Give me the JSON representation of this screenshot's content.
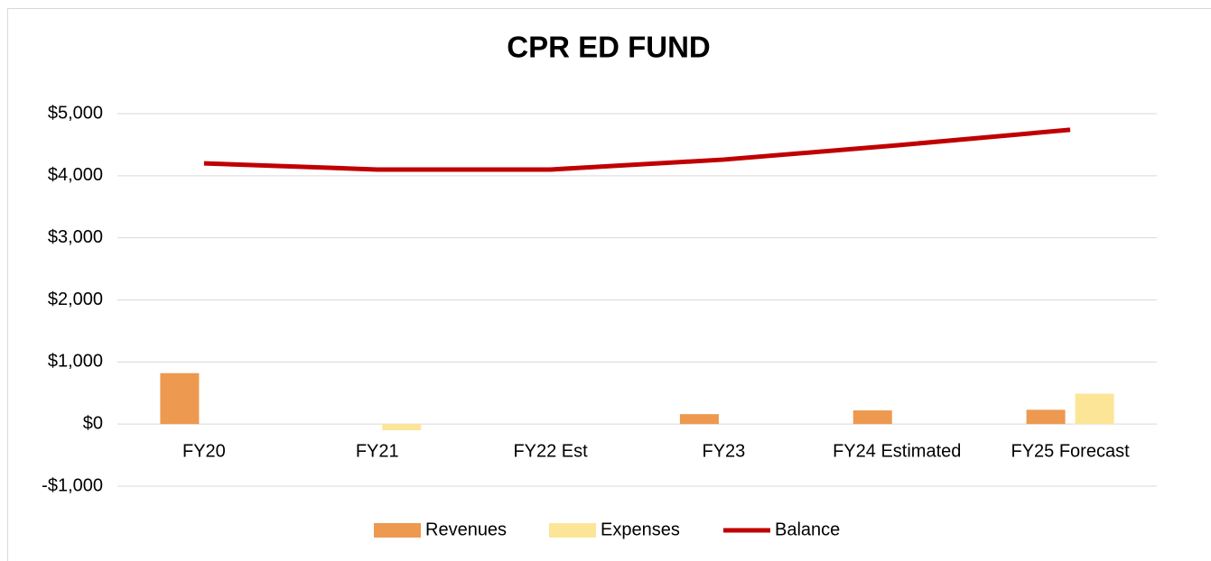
{
  "chart_data": {
    "type": "bar_line",
    "title": "CPR ED FUND",
    "categories": [
      "FY20",
      "FY21",
      "FY22 Est",
      "FY23",
      "FY24 Estimated",
      "FY25 Forecast"
    ],
    "series": [
      {
        "name": "Revenues",
        "type": "bar",
        "color": "#ed9950",
        "values": [
          820,
          0,
          0,
          160,
          220,
          230
        ]
      },
      {
        "name": "Expenses",
        "type": "bar",
        "color": "#fde598",
        "values": [
          0,
          -100,
          0,
          0,
          0,
          490
        ]
      },
      {
        "name": "Balance",
        "type": "line",
        "color": "#c00000",
        "values": [
          4200,
          4100,
          4100,
          4260,
          4490,
          4740
        ]
      }
    ],
    "ylim": [
      -1000,
      5000
    ],
    "yticks": [
      {
        "value": -1000,
        "label": "-$1,000"
      },
      {
        "value": 0,
        "label": "$0"
      },
      {
        "value": 1000,
        "label": "$1,000"
      },
      {
        "value": 2000,
        "label": "$2,000"
      },
      {
        "value": 3000,
        "label": "$3,000"
      },
      {
        "value": 4000,
        "label": "$4,000"
      },
      {
        "value": 5000,
        "label": "$5,000"
      }
    ],
    "grid": true,
    "legend": "bottom"
  }
}
